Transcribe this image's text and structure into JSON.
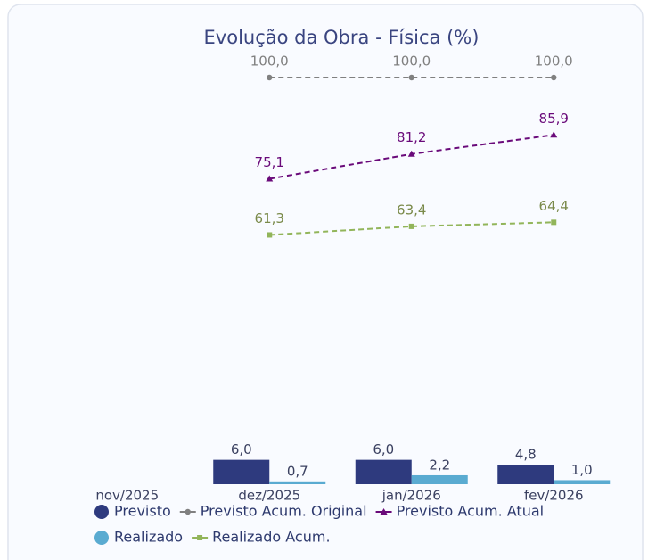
{
  "chart_data": {
    "type": "combo",
    "title": "Evolução da Obra - Física (%)",
    "categories": [
      "nov/2025",
      "dez/2025",
      "jan/2026",
      "fev/2026"
    ],
    "ylim": [
      0,
      100
    ],
    "series": [
      {
        "name": "Previsto",
        "type": "bar",
        "color": "#2e3a7e",
        "values": [
          null,
          6.0,
          6.0,
          4.8
        ],
        "value_labels": [
          null,
          "6,0",
          "6,0",
          "4,8"
        ]
      },
      {
        "name": "Previsto Acum. Original",
        "type": "line",
        "marker": "circle",
        "color": "#808080",
        "values": [
          null,
          100,
          100,
          100
        ],
        "value_labels": [
          null,
          "100,0",
          "100,0",
          "100,0"
        ]
      },
      {
        "name": "Previsto Acum. Atual",
        "type": "line",
        "marker": "triangle",
        "color": "#6a0a7a",
        "values": [
          null,
          75.1,
          81.2,
          85.9
        ],
        "value_labels": [
          null,
          "75,1",
          "81,2",
          "85,9"
        ]
      },
      {
        "name": "Realizado",
        "type": "bar",
        "color": "#5aabd1",
        "values": [
          null,
          0.7,
          2.2,
          1.0
        ],
        "value_labels": [
          null,
          "0,7",
          "2,2",
          "1,0"
        ]
      },
      {
        "name": "Realizado Acum.",
        "type": "line",
        "marker": "square",
        "color": "#92b55a",
        "values": [
          null,
          61.3,
          63.4,
          64.4
        ],
        "value_labels": [
          null,
          "61,3",
          "63,4",
          "64,4"
        ]
      }
    ]
  }
}
